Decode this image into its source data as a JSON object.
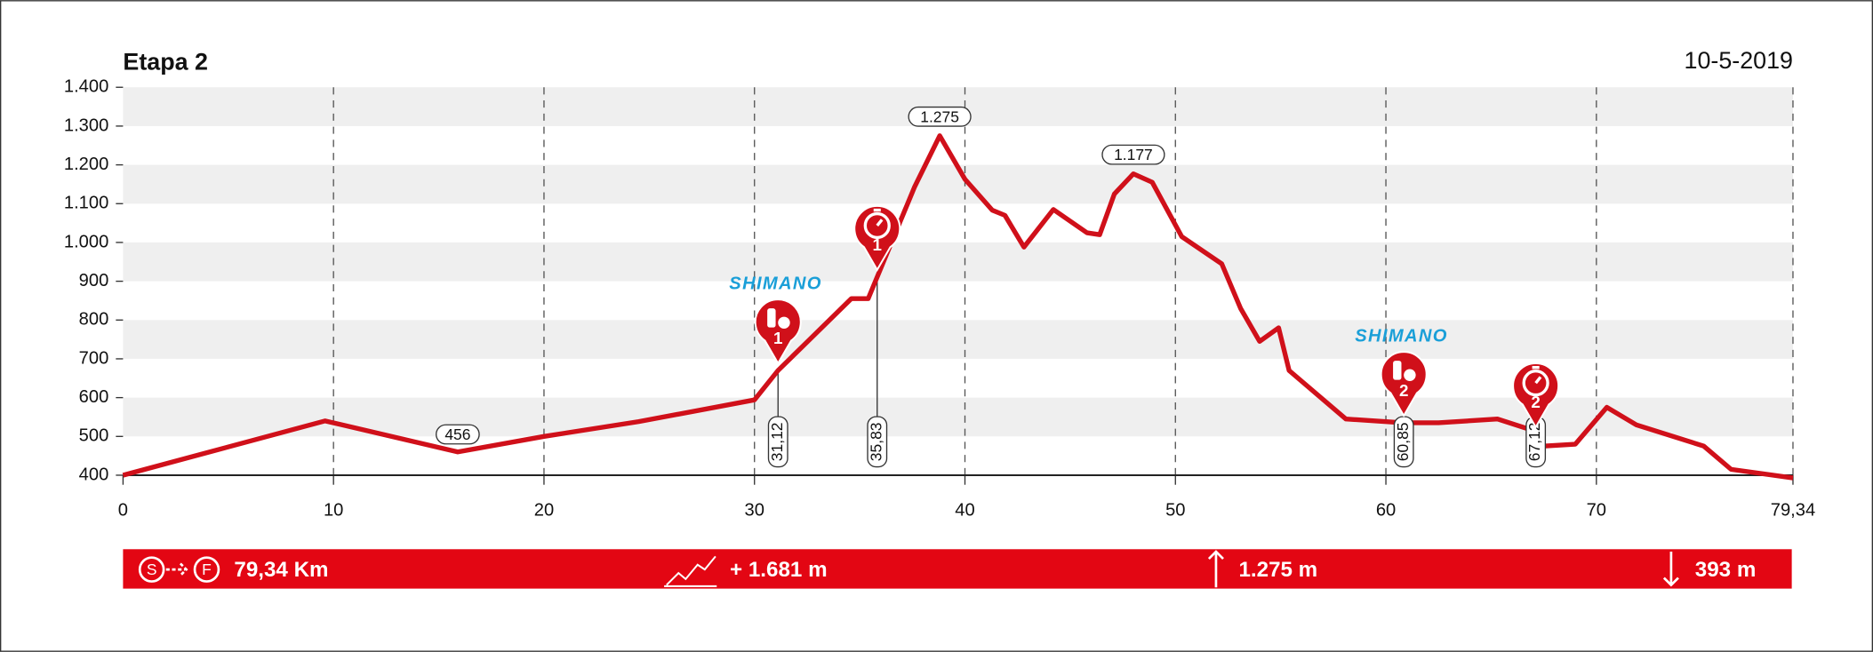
{
  "chart_data": {
    "type": "line",
    "title": "Etapa 2",
    "date": "10-5-2019",
    "color": "#d0101a",
    "x": [
      0,
      9.6,
      15.9,
      20,
      24.5,
      30,
      31.12,
      34.6,
      35.4,
      37.6,
      38.8,
      40,
      41.3,
      41.9,
      42.8,
      44.2,
      45.8,
      46.4,
      47.1,
      48,
      48.9,
      50.3,
      52.2,
      53.1,
      54,
      54.9,
      55.4,
      58.1,
      60.8,
      62.5,
      65.3,
      67,
      67.5,
      69,
      70.5,
      71.9,
      75.1,
      76.4,
      79.34
    ],
    "values": [
      400,
      540,
      460,
      500,
      538,
      594,
      670,
      855,
      855,
      1142,
      1275,
      1163,
      1083,
      1070,
      988,
      1085,
      1025,
      1020,
      1125,
      1177,
      1155,
      1015,
      945,
      830,
      745,
      780,
      670,
      545,
      535,
      535,
      545,
      515,
      475,
      480,
      575,
      530,
      475,
      415,
      393
    ],
    "xlim": [
      0,
      79.34
    ],
    "xticks": [
      0,
      10,
      20,
      30,
      40,
      50,
      60,
      70,
      {
        "value": 79.34,
        "label": "79,34"
      }
    ],
    "ylim": [
      400,
      1400
    ],
    "yticks": [
      400,
      500,
      600,
      700,
      800,
      900,
      {
        "value": 1000,
        "label": "1.000"
      },
      {
        "value": 1100,
        "label": "1.100"
      },
      {
        "value": 1200,
        "label": "1.200"
      },
      {
        "value": 1300,
        "label": "1.300"
      },
      {
        "value": 1400,
        "label": "1.400"
      }
    ],
    "grid": true,
    "annotations": [
      {
        "x": 15.9,
        "y": 456,
        "label": "456"
      },
      {
        "x": 38.8,
        "y": 1275,
        "label": "1.275"
      },
      {
        "x": 48,
        "y": 1177,
        "label": "1.177"
      }
    ],
    "markers": [
      {
        "x": 31.12,
        "label": "31,12",
        "number": "1",
        "kind": "feed",
        "sponsor": "SHIMANO"
      },
      {
        "x": 35.83,
        "label": "35,83",
        "number": "1",
        "kind": "timer"
      },
      {
        "x": 60.85,
        "label": "60,85",
        "number": "2",
        "kind": "feed",
        "sponsor": "SHIMANO"
      },
      {
        "x": 67.12,
        "label": "67,12",
        "number": "2",
        "kind": "timer"
      }
    ],
    "summary": {
      "start_icon": "S",
      "end_icon": "F",
      "distance": "79,34 Km",
      "ascent": "+ 1.681 m",
      "max": "1.275 m",
      "min": "393 m"
    }
  }
}
